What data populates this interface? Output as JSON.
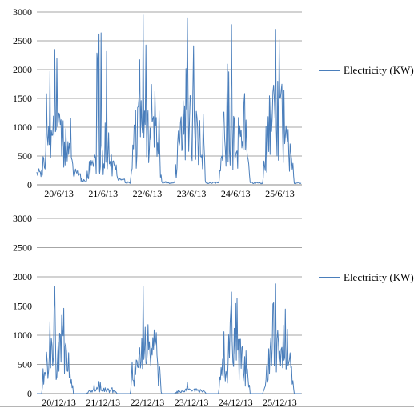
{
  "colors": {
    "series": "#4a7ebb",
    "grid": "#a6a6a6",
    "axis": "#888888"
  },
  "chart_data": [
    {
      "type": "line",
      "title": "",
      "xlabel": "",
      "ylabel": "",
      "ylim": [
        0,
        3000
      ],
      "yticks": [
        0,
        500,
        1000,
        1500,
        2000,
        2500,
        3000
      ],
      "categories": [
        "20/6/13",
        "21/6/13",
        "22/6/13",
        "23/6/13",
        "24/6/13",
        "25/6/13"
      ],
      "grid": true,
      "legend": "right",
      "series": [
        {
          "name": "Electricity (KW)",
          "days": [
            {
              "peak": 2350,
              "level": 1000,
              "night": 280
            },
            {
              "peak": 2620,
              "level": 600,
              "night": 120
            },
            {
              "peak": 2950,
              "level": 1900,
              "night": 60
            },
            {
              "peak": 2900,
              "level": 1700,
              "night": 40
            },
            {
              "peak": 2780,
              "level": 1300,
              "night": 50
            },
            {
              "peak": 2700,
              "level": 1850,
              "night": 40
            }
          ]
        }
      ]
    },
    {
      "type": "line",
      "title": "",
      "xlabel": "",
      "ylabel": "",
      "ylim": [
        0,
        3000
      ],
      "yticks": [
        0,
        500,
        1000,
        1500,
        2000,
        2500,
        3000
      ],
      "categories": [
        "20/12/13",
        "21/12/13",
        "22/12/13",
        "23/12/13",
        "24/12/13",
        "25/12/13"
      ],
      "grid": true,
      "legend": "right",
      "series": [
        {
          "name": "Electricity (KW)",
          "days": [
            {
              "peak": 1830,
              "level": 1200,
              "night": 0
            },
            {
              "peak": 210,
              "level": 120,
              "night": 0
            },
            {
              "peak": 1840,
              "level": 1150,
              "night": 0
            },
            {
              "peak": 200,
              "level": 110,
              "night": 0
            },
            {
              "peak": 1740,
              "level": 1150,
              "night": 0
            },
            {
              "peak": 1880,
              "level": 1200,
              "night": 0
            }
          ]
        }
      ]
    }
  ]
}
